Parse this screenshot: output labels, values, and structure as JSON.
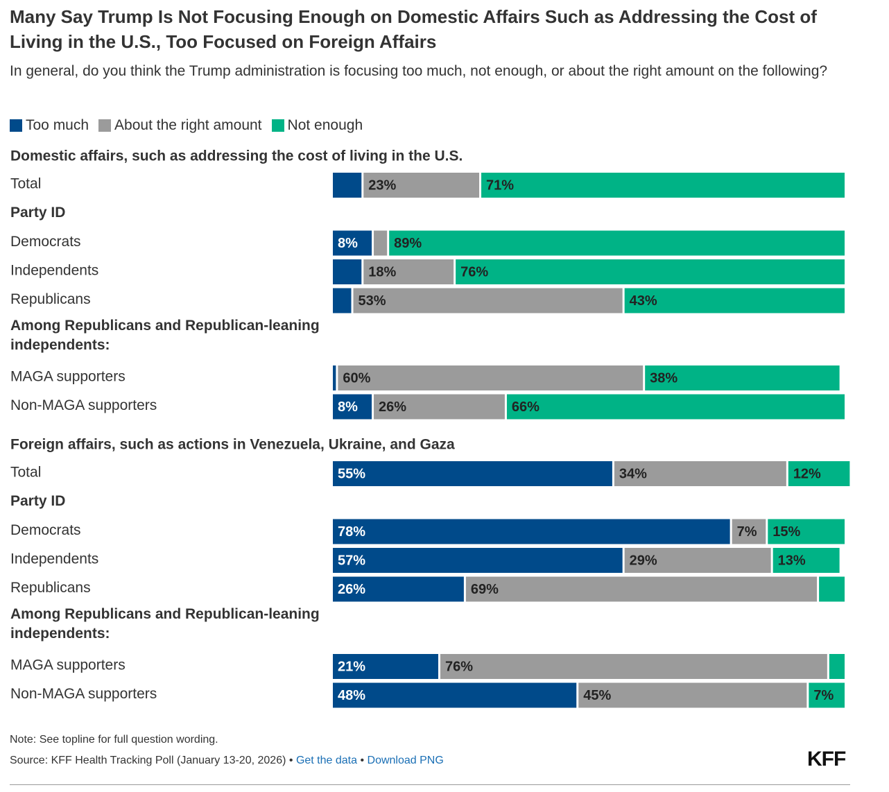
{
  "title": "Many Say Trump Is Not Focusing Enough on Domestic Affairs Such as Addressing the Cost of Living in the U.S., Too Focused on Foreign Affairs",
  "subtitle": "In general, do you think the Trump administration is focusing too much, not enough, or about the right amount on the following?",
  "legend": [
    {
      "label": "Too much",
      "color": "#004a8a"
    },
    {
      "label": "About the right amount",
      "color": "#9b9b9b"
    },
    {
      "label": "Not enough",
      "color": "#00b386"
    }
  ],
  "footer": {
    "note": "Note: See topline for full question wording.",
    "source": "Source: KFF Health Tracking Poll (January 13-20, 2026)",
    "separator": "•",
    "get_data": "Get the data",
    "download": "Download PNG",
    "logo": "KFF"
  },
  "chart_data": {
    "type": "bar",
    "orientation": "horizontal",
    "stacked": true,
    "series": [
      "Too much",
      "About the right amount",
      "Not enough"
    ],
    "xlim": [
      0,
      100
    ],
    "sections": [
      {
        "heading": "Domestic affairs, such as addressing the cost of living in the U.S.",
        "rows": [
          {
            "kind": "bar",
            "label": "Total",
            "values": [
              6,
              23,
              71
            ],
            "shown": [
              "",
              "23%",
              "71%"
            ]
          },
          {
            "kind": "group",
            "label": "Party ID"
          },
          {
            "kind": "bar",
            "label": "Democrats",
            "values": [
              8,
              3,
              89
            ],
            "shown": [
              "8%",
              "",
              "89%"
            ]
          },
          {
            "kind": "bar",
            "label": "Independents",
            "values": [
              6,
              18,
              76
            ],
            "shown": [
              "",
              "18%",
              "76%"
            ]
          },
          {
            "kind": "bar",
            "label": "Republicans",
            "values": [
              4,
              53,
              43
            ],
            "shown": [
              "",
              "53%",
              "43%"
            ]
          },
          {
            "kind": "group",
            "label": "Among Republicans and Republican-leaning independents:"
          },
          {
            "kind": "bar",
            "label": "MAGA supporters",
            "values": [
              1,
              60,
              38
            ],
            "shown": [
              "",
              "60%",
              "38%"
            ]
          },
          {
            "kind": "bar",
            "label": "Non-MAGA supporters",
            "values": [
              8,
              26,
              66
            ],
            "shown": [
              "8%",
              "26%",
              "66%"
            ]
          }
        ]
      },
      {
        "heading": "Foreign affairs, such as actions in Venezuela, Ukraine, and Gaza",
        "rows": [
          {
            "kind": "bar",
            "label": "Total",
            "values": [
              55,
              34,
              12
            ],
            "shown": [
              "55%",
              "34%",
              "12%"
            ]
          },
          {
            "kind": "group",
            "label": "Party ID"
          },
          {
            "kind": "bar",
            "label": "Democrats",
            "values": [
              78,
              7,
              15
            ],
            "shown": [
              "78%",
              "7%",
              "15%"
            ]
          },
          {
            "kind": "bar",
            "label": "Independents",
            "values": [
              57,
              29,
              13
            ],
            "shown": [
              "57%",
              "29%",
              "13%"
            ]
          },
          {
            "kind": "bar",
            "label": "Republicans",
            "values": [
              26,
              69,
              5
            ],
            "shown": [
              "26%",
              "69%",
              ""
            ]
          },
          {
            "kind": "group",
            "label": "Among Republicans and Republican-leaning independents:"
          },
          {
            "kind": "bar",
            "label": "MAGA supporters",
            "values": [
              21,
              76,
              3
            ],
            "shown": [
              "21%",
              "76%",
              ""
            ]
          },
          {
            "kind": "bar",
            "label": "Non-MAGA supporters",
            "values": [
              48,
              45,
              7
            ],
            "shown": [
              "48%",
              "45%",
              "7%"
            ]
          }
        ]
      }
    ]
  }
}
